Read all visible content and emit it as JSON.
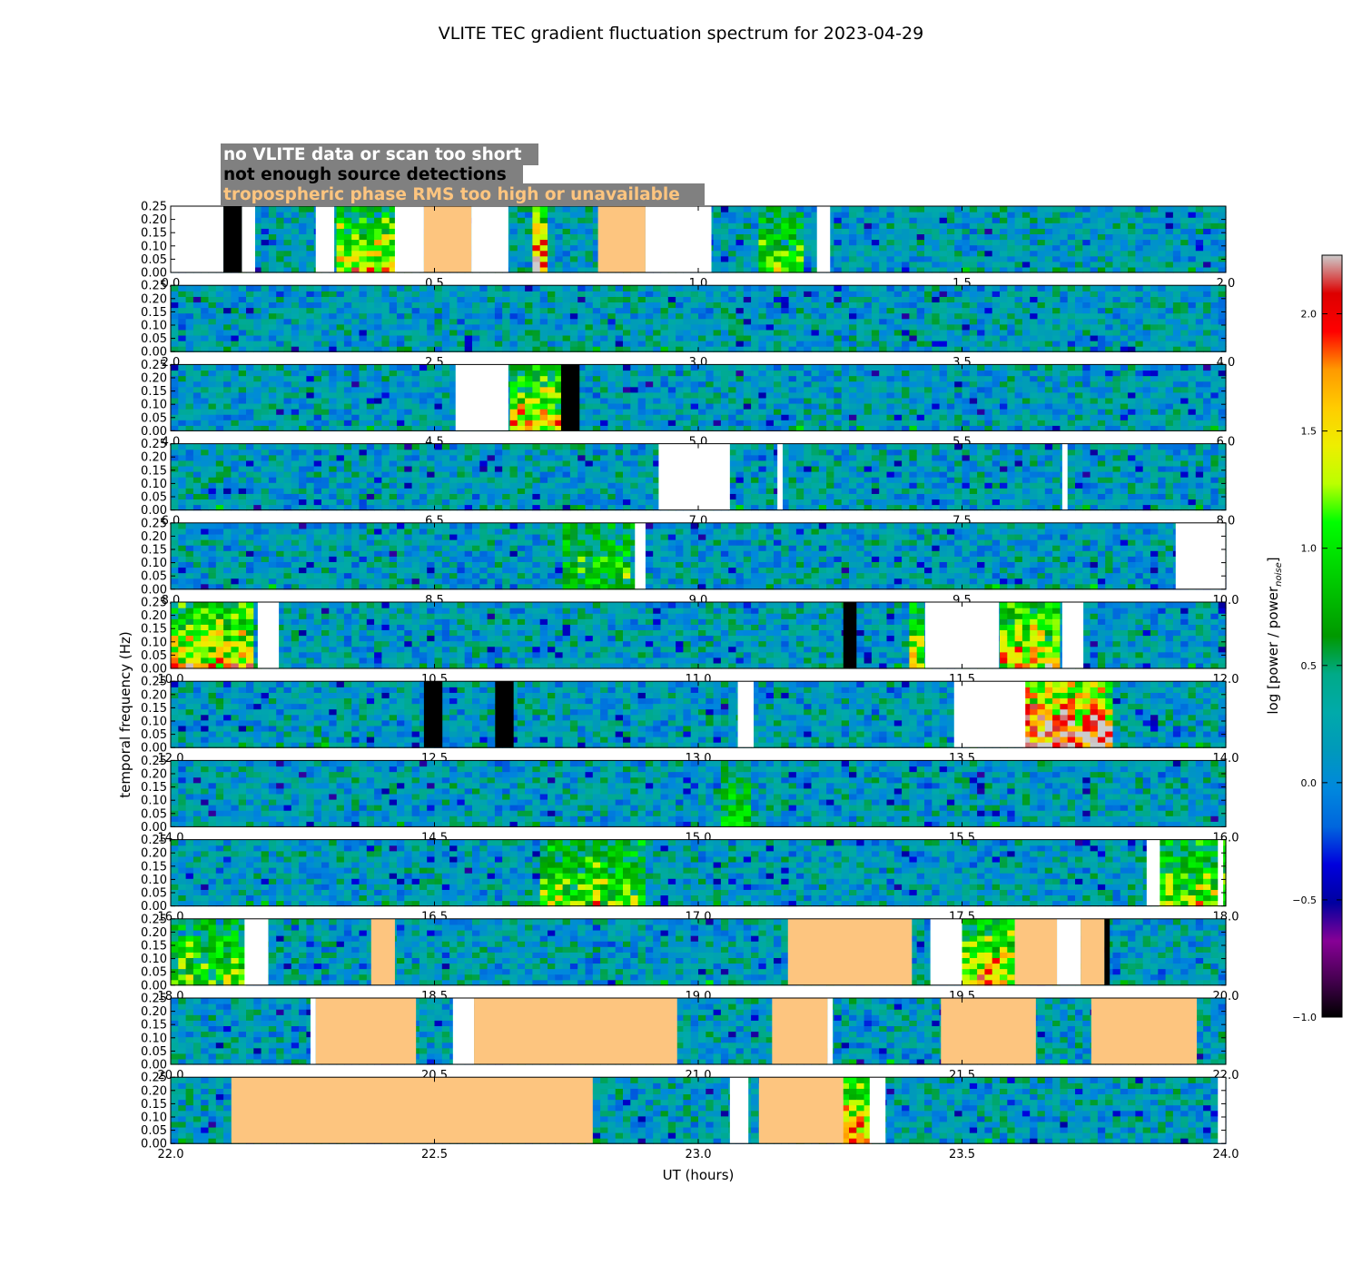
{
  "chart_data": {
    "type": "heatmap",
    "title": "VLITE TEC gradient fluctuation spectrum for 2023-04-29",
    "xlabel": "UT (hours)",
    "ylabel": "temporal frequency (Hz)",
    "colorbar": {
      "label": "log [power / power",
      "label_sub": "noise",
      "label_end": "]",
      "range": [
        -1.0,
        2.25
      ],
      "ticks": [
        "2.0",
        "1.5",
        "1.0",
        "0.5",
        "0.0",
        "−0.5",
        "−1.0"
      ],
      "tick_values": [
        2.0,
        1.5,
        1.0,
        0.5,
        0.0,
        -0.5,
        -1.0
      ],
      "colormap": "nipy_spectral"
    },
    "legend": {
      "placement": "top-left",
      "items": [
        {
          "label": "no VLITE data or scan too short",
          "text_color": "#ffffff",
          "bg": "#808080"
        },
        {
          "label": "not enough source detections",
          "text_color": "#000000",
          "bg": "#808080"
        },
        {
          "label": "tropospheric phase RMS too high or unavailable",
          "text_color": "#fdc57f",
          "bg": "#808080"
        }
      ]
    },
    "ylim": [
      0,
      0.25
    ],
    "yticks": [
      "0.00",
      "0.05",
      "0.10",
      "0.15",
      "0.20",
      "0.25"
    ],
    "ytick_values": [
      0,
      0.05,
      0.1,
      0.15,
      0.2,
      0.25
    ],
    "status_colors": {
      "nodata": "#ffffff",
      "nodet": "#000000",
      "tropo": "#fdc57f"
    },
    "panels": [
      {
        "xlim": [
          0,
          2
        ],
        "xticks": [
          "0.0",
          "0.5",
          "1.0",
          "1.5",
          "2.0"
        ],
        "xtick_values": [
          0.0,
          0.5,
          1.0,
          1.5,
          2.0
        ],
        "gaps": [
          [
            0,
            0.1,
            "nodata"
          ],
          [
            0.1,
            0.135,
            "nodet"
          ],
          [
            0.135,
            0.16,
            "nodata"
          ],
          [
            0.275,
            0.31,
            "nodata"
          ],
          [
            0.425,
            0.48,
            "nodata"
          ],
          [
            0.48,
            0.57,
            "tropo"
          ],
          [
            0.57,
            0.64,
            "nodata"
          ],
          [
            0.81,
            0.9,
            "tropo"
          ],
          [
            0.9,
            1.025,
            "nodata"
          ],
          [
            1.225,
            1.25,
            "nodata"
          ]
        ],
        "hot": [
          [
            0.31,
            0.425,
            0.9
          ],
          [
            0.68,
            0.72,
            1.5
          ],
          [
            1.12,
            1.2,
            0.6
          ]
        ]
      },
      {
        "xlim": [
          2,
          4
        ],
        "xticks": [
          "2.0",
          "2.5",
          "3.0",
          "3.5",
          "4.0"
        ],
        "xtick_values": [
          2.0,
          2.5,
          3.0,
          3.5,
          4.0
        ],
        "gaps": [],
        "hot": []
      },
      {
        "xlim": [
          4,
          6
        ],
        "xticks": [
          "4.0",
          "4.5",
          "5.0",
          "5.5",
          "6.0"
        ],
        "xtick_values": [
          4.0,
          4.5,
          5.0,
          5.5,
          6.0
        ],
        "gaps": [
          [
            4.54,
            4.64,
            "nodata"
          ],
          [
            4.74,
            4.775,
            "nodet"
          ]
        ],
        "hot": [
          [
            4.64,
            4.74,
            0.9
          ]
        ]
      },
      {
        "xlim": [
          6,
          8
        ],
        "xticks": [
          "6.0",
          "6.5",
          "7.0",
          "7.5",
          "8.0"
        ],
        "xtick_values": [
          6.0,
          6.5,
          7.0,
          7.5,
          8.0
        ],
        "gaps": [
          [
            6.925,
            7.06,
            "nodata"
          ],
          [
            7.15,
            7.16,
            "nodata"
          ],
          [
            7.69,
            7.7,
            "nodata"
          ]
        ],
        "hot": []
      },
      {
        "xlim": [
          8,
          10
        ],
        "xticks": [
          "8.0",
          "8.5",
          "9.0",
          "9.5",
          "10.0"
        ],
        "xtick_values": [
          8.0,
          8.5,
          9.0,
          9.5,
          10.0
        ],
        "gaps": [
          [
            8.88,
            8.9,
            "nodata"
          ],
          [
            9.905,
            10.0,
            "nodata"
          ]
        ],
        "hot": [
          [
            8.75,
            8.88,
            0.5
          ]
        ]
      },
      {
        "xlim": [
          10,
          12
        ],
        "xticks": [
          "10.0",
          "10.5",
          "11.0",
          "11.5",
          "12.0"
        ],
        "xtick_values": [
          10.0,
          10.5,
          11.0,
          11.5,
          12.0
        ],
        "gaps": [
          [
            10.165,
            10.205,
            "nodata"
          ],
          [
            11.275,
            11.3,
            "nodet"
          ],
          [
            11.43,
            11.57,
            "nodata"
          ],
          [
            11.69,
            11.73,
            "nodata"
          ]
        ],
        "hot": [
          [
            10.0,
            10.16,
            1.0
          ],
          [
            11.57,
            11.69,
            1.0
          ],
          [
            11.4,
            11.43,
            0.9
          ]
        ]
      },
      {
        "xlim": [
          12,
          14
        ],
        "xticks": [
          "12.0",
          "12.5",
          "13.0",
          "13.5",
          "14.0"
        ],
        "xtick_values": [
          12.0,
          12.5,
          13.0,
          13.5,
          14.0
        ],
        "gaps": [
          [
            12.48,
            12.515,
            "nodet"
          ],
          [
            12.615,
            12.65,
            "nodet"
          ],
          [
            13.075,
            13.105,
            "nodata"
          ],
          [
            13.485,
            13.62,
            "nodata"
          ]
        ],
        "hot": [
          [
            13.62,
            13.78,
            1.6
          ]
        ]
      },
      {
        "xlim": [
          14,
          16
        ],
        "xticks": [
          "14.0",
          "14.5",
          "15.0",
          "15.5",
          "16.0"
        ],
        "xtick_values": [
          14.0,
          14.5,
          15.0,
          15.5,
          16.0
        ],
        "gaps": [],
        "hot": [
          [
            15.05,
            15.1,
            0.5
          ]
        ]
      },
      {
        "xlim": [
          16,
          18
        ],
        "xticks": [
          "16.0",
          "16.5",
          "17.0",
          "17.5",
          "18.0"
        ],
        "xtick_values": [
          16.0,
          16.5,
          17.0,
          17.5,
          18.0
        ],
        "gaps": [
          [
            17.85,
            17.875,
            "nodata"
          ],
          [
            17.985,
            17.995,
            "nodata"
          ]
        ],
        "hot": [
          [
            16.7,
            16.9,
            0.7
          ],
          [
            17.875,
            18.0,
            0.8
          ]
        ]
      },
      {
        "xlim": [
          18,
          20
        ],
        "xticks": [
          "18.0",
          "18.5",
          "19.0",
          "19.5",
          "20.0"
        ],
        "xtick_values": [
          18.0,
          18.5,
          19.0,
          19.5,
          20.0
        ],
        "gaps": [
          [
            18.14,
            18.185,
            "nodata"
          ],
          [
            18.38,
            18.425,
            "tropo"
          ],
          [
            19.17,
            19.405,
            "tropo"
          ],
          [
            19.44,
            19.5,
            "nodata"
          ],
          [
            19.6,
            19.68,
            "tropo"
          ],
          [
            19.68,
            19.725,
            "nodata"
          ],
          [
            19.725,
            19.77,
            "tropo"
          ],
          [
            19.77,
            19.78,
            "nodet"
          ]
        ],
        "hot": [
          [
            19.505,
            19.6,
            1.0
          ],
          [
            18.0,
            18.14,
            0.6
          ]
        ]
      },
      {
        "xlim": [
          20,
          22
        ],
        "xticks": [
          "20.0",
          "20.5",
          "21.0",
          "21.5",
          "22.0"
        ],
        "xtick_values": [
          20.0,
          20.5,
          21.0,
          21.5,
          22.0
        ],
        "gaps": [
          [
            20.265,
            20.275,
            "nodata"
          ],
          [
            20.275,
            20.465,
            "tropo"
          ],
          [
            20.535,
            20.575,
            "nodata"
          ],
          [
            20.575,
            20.96,
            "tropo"
          ],
          [
            21.14,
            21.245,
            "tropo"
          ],
          [
            21.245,
            21.255,
            "nodata"
          ],
          [
            21.46,
            21.64,
            "tropo"
          ],
          [
            21.745,
            21.945,
            "tropo"
          ]
        ],
        "hot": []
      },
      {
        "xlim": [
          22,
          24
        ],
        "xticks": [
          "22.0",
          "22.5",
          "23.0",
          "23.5",
          "24.0"
        ],
        "xtick_values": [
          22.0,
          22.5,
          23.0,
          23.5,
          24.0
        ],
        "gaps": [
          [
            22.115,
            22.8,
            "tropo"
          ],
          [
            23.06,
            23.095,
            "nodata"
          ],
          [
            23.115,
            23.275,
            "tropo"
          ],
          [
            23.325,
            23.355,
            "nodata"
          ],
          [
            23.985,
            24.0,
            "nodata"
          ]
        ],
        "hot": [
          [
            23.275,
            23.325,
            1.2
          ]
        ]
      }
    ]
  }
}
